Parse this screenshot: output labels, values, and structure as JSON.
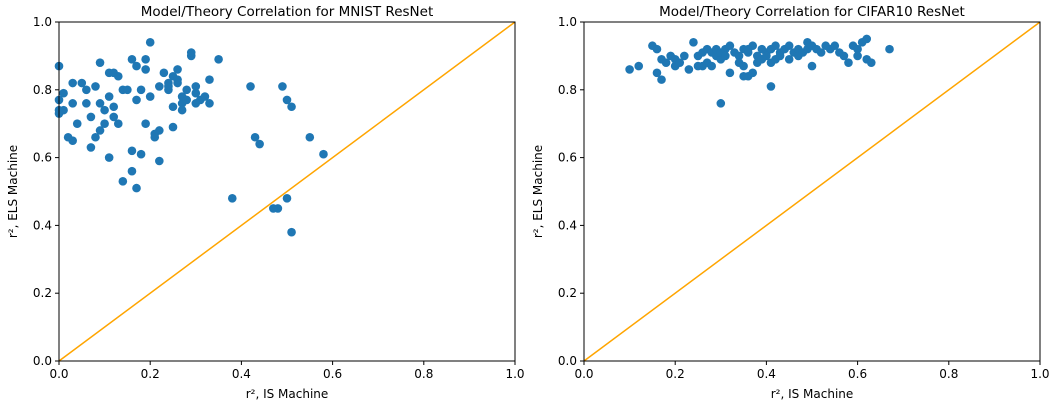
{
  "figure": {
    "colors": {
      "points": "#1f77b4",
      "identity_line": "#ffa500",
      "axes": "#000000"
    }
  },
  "chart_data": [
    {
      "type": "scatter",
      "title": "Model/Theory Correlation for MNIST ResNet",
      "xlabel": "r², IS Machine",
      "ylabel": "r², ELS Machine",
      "xlim": [
        0,
        1
      ],
      "ylim": [
        0,
        1
      ],
      "xticks": [
        "0.0",
        "0.2",
        "0.4",
        "0.6",
        "0.8",
        "1.0"
      ],
      "yticks": [
        "0.0",
        "0.2",
        "0.4",
        "0.6",
        "0.8",
        "1.0"
      ],
      "grid": false,
      "reference_line": {
        "type": "identity",
        "color": "#ffa500"
      },
      "series": [
        {
          "color": "#1f77b4",
          "x": [
            0.0,
            0.0,
            0.0,
            0.01,
            0.01,
            0.0,
            0.03,
            0.03,
            0.04,
            0.03,
            0.06,
            0.07,
            0.06,
            0.07,
            0.09,
            0.08,
            0.09,
            0.08,
            0.1,
            0.11,
            0.09,
            0.1,
            0.12,
            0.11,
            0.11,
            0.12,
            0.13,
            0.13,
            0.14,
            0.14,
            0.15,
            0.16,
            0.16,
            0.17,
            0.17,
            0.17,
            0.19,
            0.18,
            0.19,
            0.2,
            0.2,
            0.21,
            0.22,
            0.22,
            0.22,
            0.23,
            0.24,
            0.24,
            0.25,
            0.25,
            0.25,
            0.26,
            0.26,
            0.26,
            0.27,
            0.27,
            0.27,
            0.28,
            0.28,
            0.29,
            0.29,
            0.3,
            0.3,
            0.3,
            0.31,
            0.32,
            0.33,
            0.33,
            0.35,
            0.24,
            0.21,
            0.19,
            0.18,
            0.16,
            0.12,
            0.05,
            0.02,
            0.38,
            0.42,
            0.43,
            0.44,
            0.48,
            0.49,
            0.5,
            0.51,
            0.5,
            0.51,
            0.55,
            0.58,
            0.47
          ],
          "y": [
            0.87,
            0.77,
            0.73,
            0.74,
            0.79,
            0.74,
            0.76,
            0.82,
            0.7,
            0.65,
            0.76,
            0.63,
            0.8,
            0.72,
            0.88,
            0.81,
            0.68,
            0.66,
            0.74,
            0.85,
            0.76,
            0.7,
            0.72,
            0.78,
            0.6,
            0.85,
            0.84,
            0.7,
            0.8,
            0.53,
            0.8,
            0.62,
            0.89,
            0.87,
            0.77,
            0.51,
            0.89,
            0.8,
            0.86,
            0.94,
            0.78,
            0.66,
            0.81,
            0.59,
            0.68,
            0.85,
            0.82,
            0.8,
            0.84,
            0.69,
            0.75,
            0.86,
            0.83,
            0.82,
            0.76,
            0.78,
            0.74,
            0.8,
            0.77,
            0.9,
            0.91,
            0.79,
            0.76,
            0.81,
            0.77,
            0.78,
            0.76,
            0.83,
            0.89,
            0.81,
            0.67,
            0.7,
            0.61,
            0.56,
            0.75,
            0.82,
            0.66,
            0.48,
            0.81,
            0.66,
            0.64,
            0.45,
            0.81,
            0.77,
            0.75,
            0.48,
            0.38,
            0.66,
            0.61,
            0.45
          ]
        }
      ]
    },
    {
      "type": "scatter",
      "title": "Model/Theory Correlation for CIFAR10 ResNet",
      "xlabel": "r², IS Machine",
      "ylabel": "r², ELS Machine",
      "xlim": [
        0,
        1
      ],
      "ylim": [
        0,
        1
      ],
      "xticks": [
        "0.0",
        "0.2",
        "0.4",
        "0.6",
        "0.8",
        "1.0"
      ],
      "yticks": [
        "0.0",
        "0.2",
        "0.4",
        "0.6",
        "0.8",
        "1.0"
      ],
      "grid": false,
      "reference_line": {
        "type": "identity",
        "color": "#ffa500"
      },
      "series": [
        {
          "color": "#1f77b4",
          "x": [
            0.1,
            0.12,
            0.15,
            0.16,
            0.16,
            0.17,
            0.17,
            0.18,
            0.19,
            0.2,
            0.2,
            0.21,
            0.22,
            0.23,
            0.24,
            0.25,
            0.26,
            0.26,
            0.27,
            0.27,
            0.28,
            0.28,
            0.29,
            0.29,
            0.3,
            0.3,
            0.31,
            0.31,
            0.32,
            0.32,
            0.33,
            0.34,
            0.34,
            0.35,
            0.35,
            0.36,
            0.36,
            0.37,
            0.37,
            0.38,
            0.38,
            0.39,
            0.39,
            0.4,
            0.4,
            0.41,
            0.41,
            0.42,
            0.42,
            0.43,
            0.43,
            0.44,
            0.45,
            0.45,
            0.46,
            0.47,
            0.47,
            0.48,
            0.49,
            0.49,
            0.5,
            0.5,
            0.51,
            0.52,
            0.53,
            0.54,
            0.55,
            0.56,
            0.57,
            0.58,
            0.59,
            0.6,
            0.6,
            0.61,
            0.62,
            0.62,
            0.63,
            0.67,
            0.3,
            0.35,
            0.41,
            0.36,
            0.25
          ],
          "y": [
            0.86,
            0.87,
            0.93,
            0.92,
            0.85,
            0.83,
            0.89,
            0.88,
            0.9,
            0.87,
            0.89,
            0.88,
            0.9,
            0.86,
            0.94,
            0.9,
            0.91,
            0.87,
            0.92,
            0.88,
            0.91,
            0.87,
            0.9,
            0.92,
            0.89,
            0.91,
            0.92,
            0.9,
            0.93,
            0.85,
            0.91,
            0.9,
            0.88,
            0.92,
            0.87,
            0.84,
            0.91,
            0.85,
            0.93,
            0.9,
            0.88,
            0.92,
            0.89,
            0.91,
            0.9,
            0.92,
            0.88,
            0.93,
            0.89,
            0.91,
            0.9,
            0.92,
            0.93,
            0.89,
            0.91,
            0.92,
            0.9,
            0.91,
            0.92,
            0.94,
            0.93,
            0.87,
            0.92,
            0.91,
            0.93,
            0.92,
            0.93,
            0.91,
            0.9,
            0.88,
            0.93,
            0.92,
            0.9,
            0.94,
            0.95,
            0.89,
            0.88,
            0.92,
            0.76,
            0.84,
            0.81,
            0.92,
            0.87
          ]
        }
      ]
    }
  ]
}
